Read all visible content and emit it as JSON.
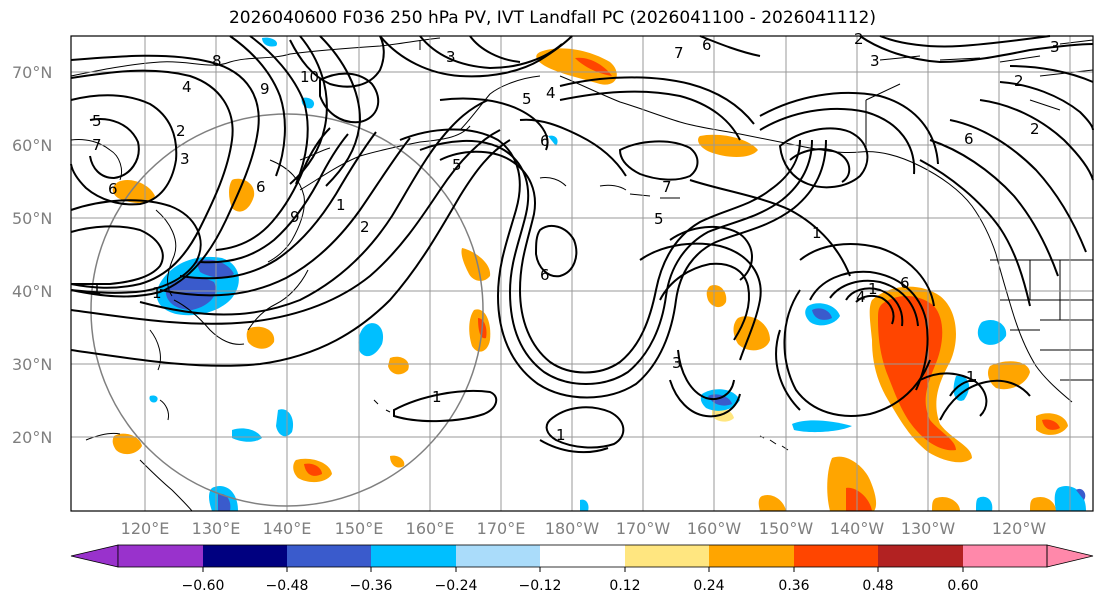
{
  "title": "2026040600 F036 250 hPa PV, IVT Landfall PC (2026041100 - 2026041112)",
  "lat_labels": [
    "70°N",
    "60°N",
    "50°N",
    "40°N",
    "30°N",
    "20°N"
  ],
  "lon_labels": [
    "120°E",
    "130°E",
    "140°E",
    "150°E",
    "160°E",
    "170°E",
    "180°W",
    "170°W",
    "160°W",
    "150°W",
    "140°W",
    "130°W",
    "120°W"
  ],
  "colorbar": {
    "ticks": [
      "−0.60",
      "−0.48",
      "−0.36",
      "−0.24",
      "−0.12",
      "0.12",
      "0.24",
      "0.36",
      "0.48",
      "0.60"
    ],
    "colors": [
      "#9932cc",
      "#000080",
      "#3a5bcc",
      "#00bfff",
      "#aadcfa",
      "#ffffff",
      "#ffe680",
      "#ffa500",
      "#ff4500",
      "#b22222",
      "#ff88aa"
    ]
  },
  "contour_labels": [
    "8",
    "9",
    "10",
    "5",
    "4",
    "7",
    "6",
    "3",
    "2",
    "1",
    "1",
    "6",
    "9",
    "2",
    "1",
    "3",
    "5",
    "4",
    "6",
    "2",
    "7",
    "6",
    "3",
    "2",
    "5",
    "6",
    "5",
    "7",
    "6",
    "1",
    "3",
    "4",
    "1",
    "6",
    "3",
    "2",
    "1",
    "1",
    "1"
  ],
  "colors": {
    "contour": "#000000",
    "grid": "#999999",
    "circle": "#808080"
  }
}
